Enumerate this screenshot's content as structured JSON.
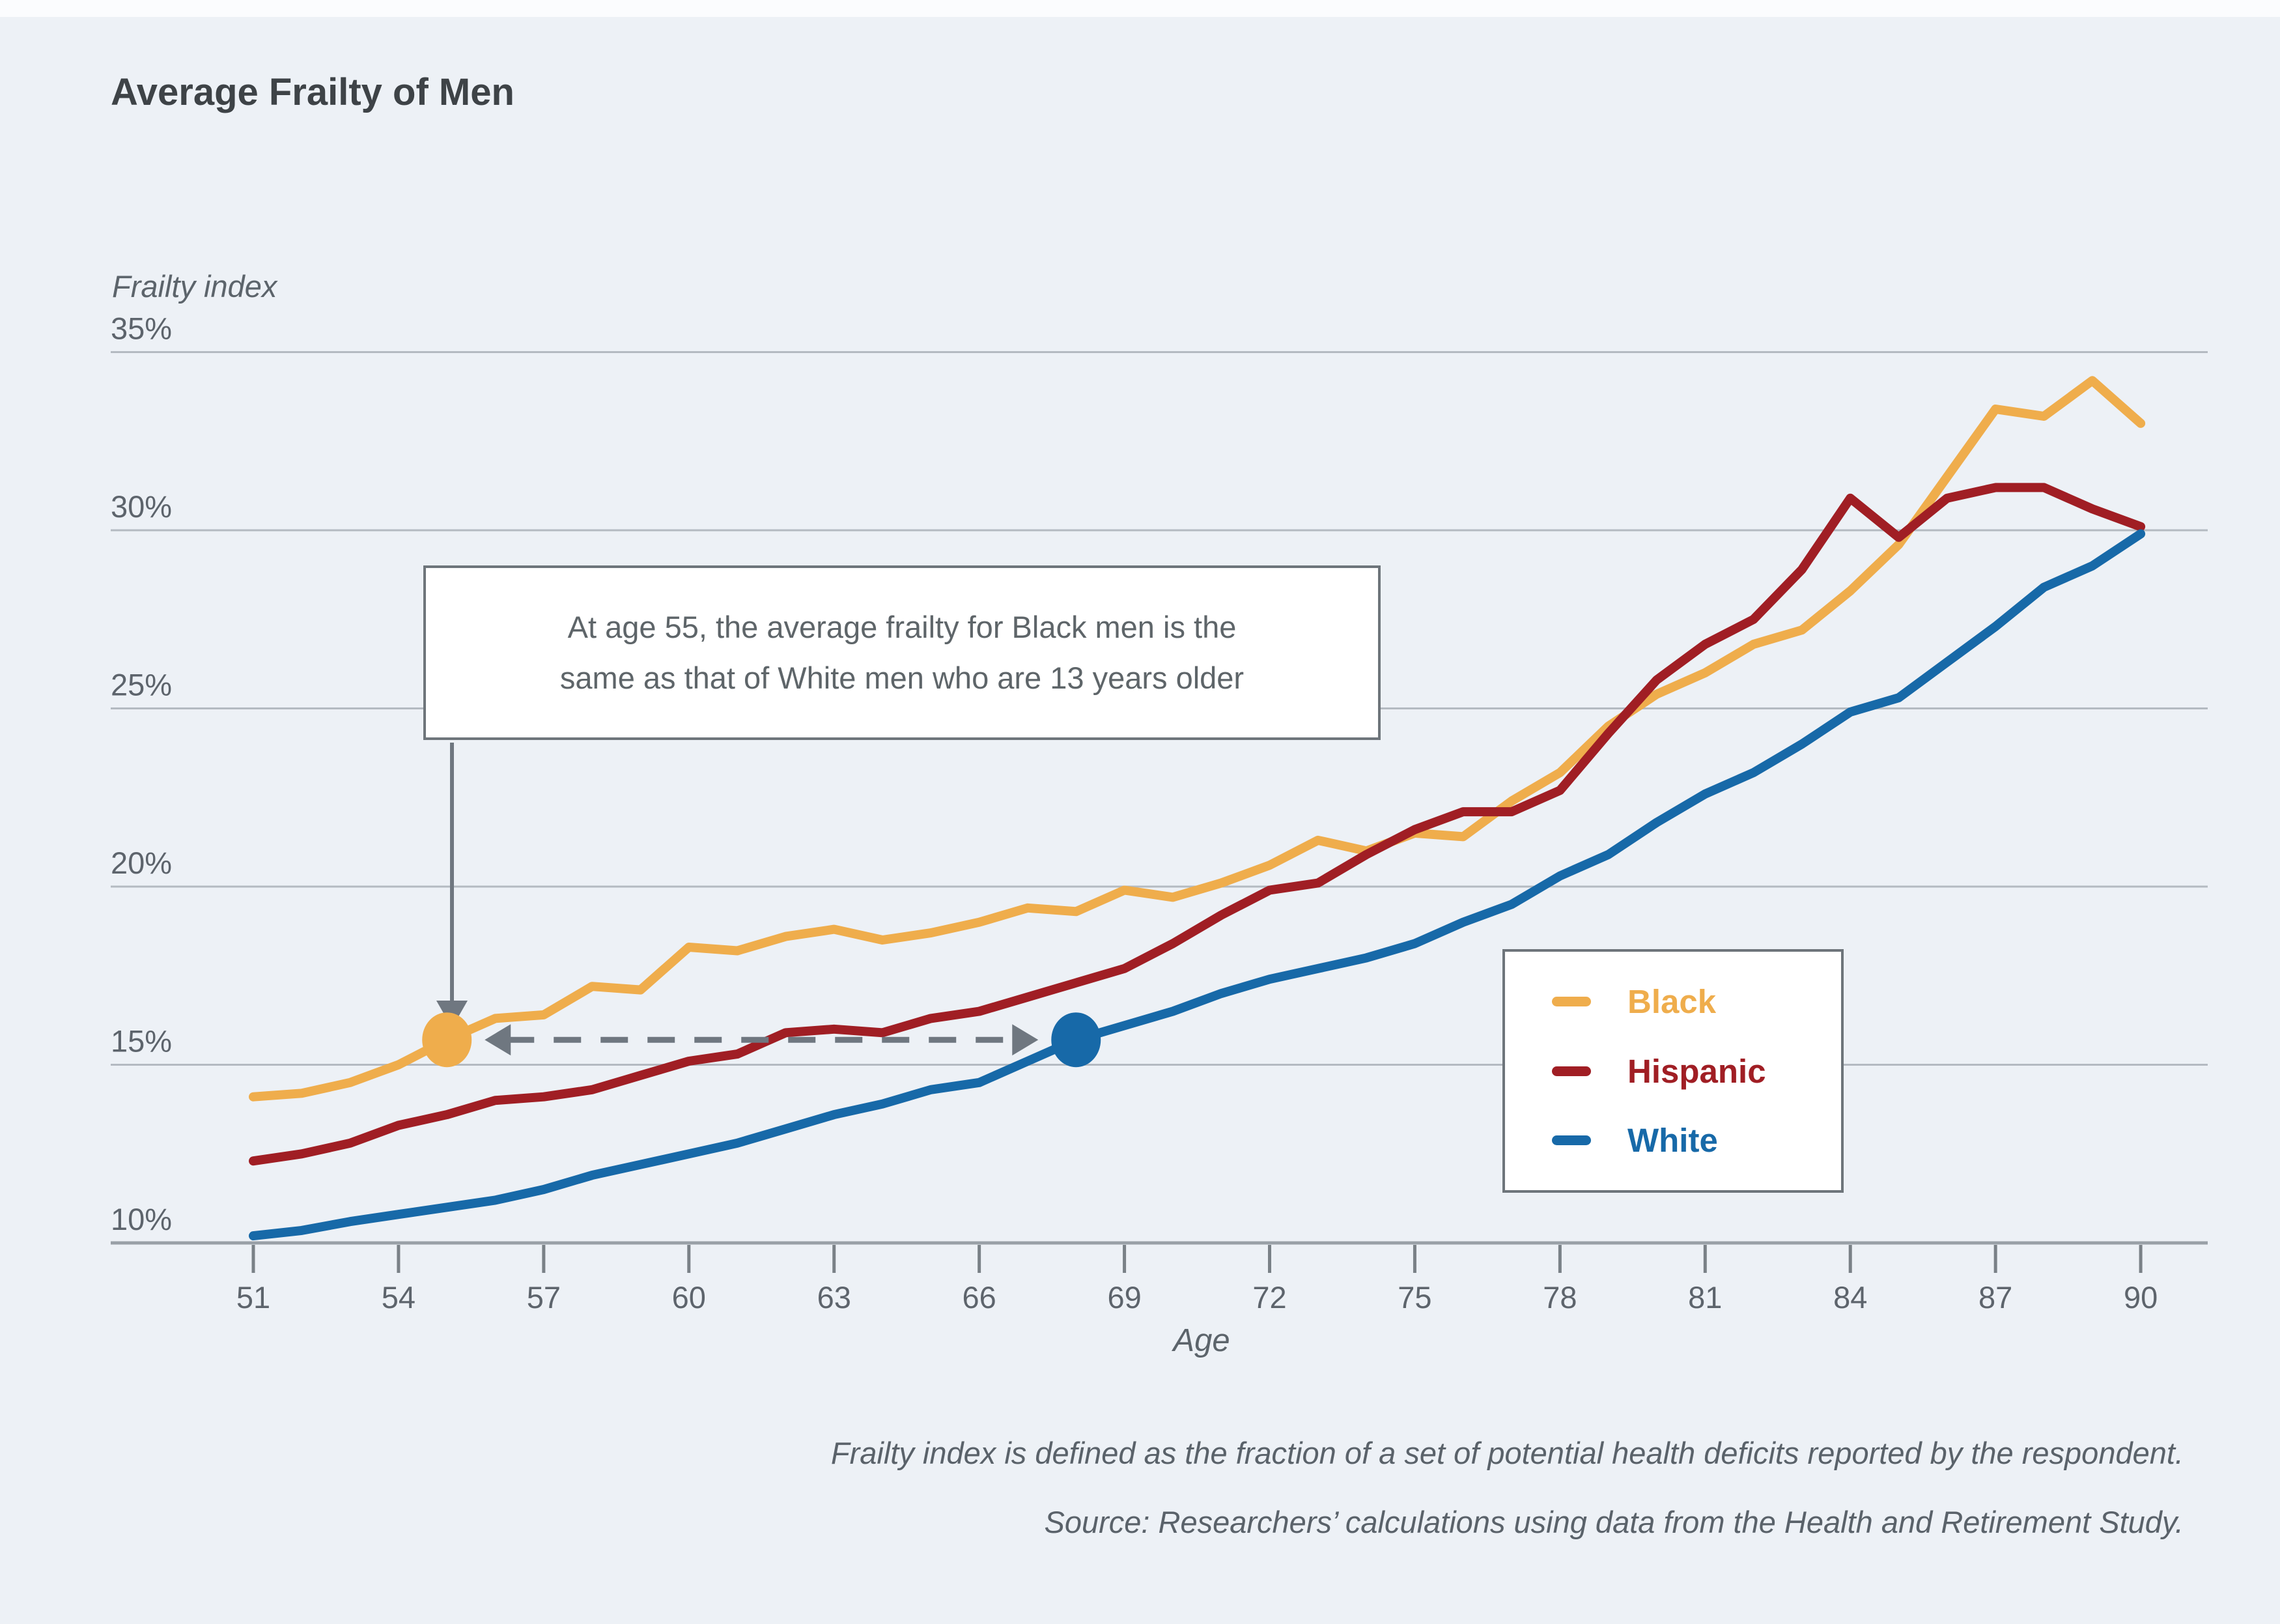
{
  "page": {
    "title": "Average Frailty of Men",
    "background_color": "#EDF1F6"
  },
  "annotation": {
    "line1": "At age 55, the average frailty for Black men is the",
    "line2": "same as that of White men who are 13 years older"
  },
  "legend": {
    "items": [
      {
        "label": "Black",
        "color": "#EFAD4C"
      },
      {
        "label": "Hispanic",
        "color": "#A01E24"
      },
      {
        "label": "White",
        "color": "#1769A8"
      }
    ]
  },
  "footnote": {
    "line1": "Frailty index is defined as the fraction of a set of potential health deficits reported by the respondent.",
    "line2": "Source: Researchers’ calculations using data from the Health and Retirement Study."
  },
  "chart_data": {
    "type": "line",
    "title": "Average Frailty of Men",
    "xlabel": "Age",
    "ylabel": "Frailty index",
    "xlim": [
      51,
      90
    ],
    "ylim": [
      10,
      35
    ],
    "grid": true,
    "legend_position": "lower-right",
    "x_tick_values": [
      51,
      54,
      57,
      60,
      63,
      66,
      69,
      72,
      75,
      78,
      81,
      84,
      87,
      90
    ],
    "x_tick_labels": [
      "51",
      "54",
      "57",
      "60",
      "63",
      "66",
      "69",
      "72",
      "75",
      "78",
      "81",
      "84",
      "87",
      "90"
    ],
    "y_tick_values": [
      10,
      15,
      20,
      25,
      30,
      35
    ],
    "y_tick_labels": [
      "10%",
      "15%",
      "20%",
      "25%",
      "30%",
      "35%"
    ],
    "x": [
      51,
      52,
      53,
      54,
      55,
      56,
      57,
      58,
      59,
      60,
      61,
      62,
      63,
      64,
      65,
      66,
      67,
      68,
      69,
      70,
      71,
      72,
      73,
      74,
      75,
      76,
      77,
      78,
      79,
      80,
      81,
      82,
      83,
      84,
      85,
      86,
      87,
      88,
      89,
      90
    ],
    "series": [
      {
        "name": "Black",
        "color": "#EFAD4C",
        "values": [
          14.1,
          14.2,
          14.5,
          15.0,
          15.7,
          16.3,
          16.4,
          17.2,
          17.1,
          18.3,
          18.2,
          18.6,
          18.8,
          18.5,
          18.7,
          19.0,
          19.4,
          19.3,
          19.9,
          19.7,
          20.1,
          20.6,
          21.3,
          21.0,
          21.5,
          21.4,
          22.4,
          23.2,
          24.5,
          25.4,
          26.0,
          26.8,
          27.2,
          28.3,
          29.6,
          31.5,
          33.4,
          33.2,
          34.2,
          33.0
        ]
      },
      {
        "name": "Hispanic",
        "color": "#A01E24",
        "values": [
          12.3,
          12.5,
          12.8,
          13.3,
          13.6,
          14.0,
          14.1,
          14.3,
          14.7,
          15.1,
          15.3,
          15.9,
          16.0,
          15.9,
          16.3,
          16.5,
          16.9,
          17.3,
          17.7,
          18.4,
          19.2,
          19.9,
          20.1,
          20.9,
          21.6,
          22.1,
          22.1,
          22.7,
          24.3,
          25.8,
          26.8,
          27.5,
          28.9,
          30.9,
          29.8,
          30.9,
          31.2,
          31.2,
          30.6,
          30.1
        ]
      },
      {
        "name": "White",
        "color": "#1769A8",
        "values": [
          10.2,
          10.35,
          10.6,
          10.8,
          11.0,
          11.2,
          11.5,
          11.9,
          12.2,
          12.5,
          12.8,
          13.2,
          13.6,
          13.9,
          14.3,
          14.5,
          15.1,
          15.7,
          16.1,
          16.5,
          17.0,
          17.4,
          17.7,
          18.0,
          18.4,
          19.0,
          19.5,
          20.3,
          20.9,
          21.8,
          22.6,
          23.2,
          24.0,
          24.9,
          25.3,
          26.3,
          27.3,
          28.4,
          29.0,
          29.9
        ]
      }
    ],
    "markers": [
      {
        "series": "Black",
        "age": 55,
        "value": 15.7
      },
      {
        "series": "White",
        "age": 68,
        "value": 15.7
      }
    ],
    "connector": {
      "from_age": 55,
      "to_age": 68,
      "value": 15.7
    }
  }
}
